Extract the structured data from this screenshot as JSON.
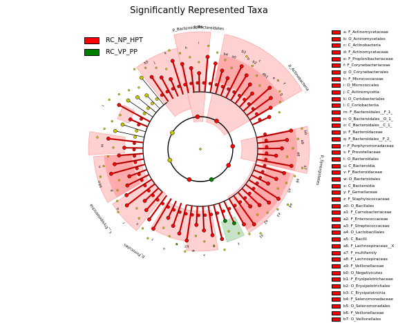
{
  "title": "Significantly Represented Taxa",
  "colors": {
    "np_hpt": "#ff0000",
    "vp_pp": "#008000",
    "shade_np_hpt": "#ff9999",
    "shade_vp_pp": "#99cc99",
    "node_neutral": "#c8c800",
    "edge": "#000000"
  },
  "legend": [
    {
      "label": "RC_NP_HPT",
      "color": "#ff0000"
    },
    {
      "label": "RC_VP_PP",
      "color": "#008000"
    }
  ],
  "ring_labels": [
    {
      "text": "p_Bacteroidetes"
    },
    {
      "text": "c_Bacteroidetes"
    },
    {
      "text": "p_Actinobacteria"
    },
    {
      "text": "p_Synergistetes"
    },
    {
      "text": "p_Firmicutes"
    },
    {
      "text": "c__Erysipelotrichia"
    }
  ],
  "arc_labels": [
    "a0",
    "b",
    "c",
    "d",
    "e",
    "f",
    "g",
    "h",
    "i",
    "j",
    "k",
    "l",
    "m",
    "n",
    "o",
    "p",
    "q",
    "r",
    "s",
    "t",
    "u",
    "v",
    "w",
    "x",
    "y",
    "z",
    "a1",
    "a2",
    "a3",
    "a4",
    "a5",
    "a6",
    "a7",
    "a8",
    "a9",
    "b0",
    "b1",
    "b2",
    "b3",
    "b4",
    "b5",
    "b6",
    "b7"
  ],
  "clade_key": [
    {
      "label": "a: F_Actinomycetaceae"
    },
    {
      "label": "b: O_Actinomycetales"
    },
    {
      "label": "c: C_Actinobacteria"
    },
    {
      "label": "d: F_Actinomycetaceae"
    },
    {
      "label": "e: F_Propionibacteriaceae"
    },
    {
      "label": "f: F_Corynebacteriaceae"
    },
    {
      "label": "g: O_Corynebacteriales"
    },
    {
      "label": "h: F_Micrococcaceae"
    },
    {
      "label": "i: O_Micrococcales"
    },
    {
      "label": "j: C_Actinomycetia"
    },
    {
      "label": "k: O_Coriobacteriales"
    },
    {
      "label": "l: C_Coriobacteriia"
    },
    {
      "label": "m: F_Bacteroidales__F_1_"
    },
    {
      "label": "n: O_Bacteroidales__O_1_"
    },
    {
      "label": "o: C_Bacteroidales__C_1_"
    },
    {
      "label": "p: F_Bacteroidaceae"
    },
    {
      "label": "q: F_Bacteroidales__F_2_"
    },
    {
      "label": "r: F_Porphyromonadaceae"
    },
    {
      "label": "s: F_Prevotellaceae"
    },
    {
      "label": "t: O_Bacteroidales"
    },
    {
      "label": "u: C_Bacteroidia"
    },
    {
      "label": "v: F_Bacteroidaceae"
    },
    {
      "label": "w: O_Bacteroidales"
    },
    {
      "label": "x: C_Bacteroidia"
    },
    {
      "label": "y: F_Gemellaceae"
    },
    {
      "label": "z: F_Staphylococcaceae"
    },
    {
      "label": "a0: O_Bacillales"
    },
    {
      "label": "a1: F_Carnobacteriaceae"
    },
    {
      "label": "a2: F_Enterococcaceae"
    },
    {
      "label": "a3: F_Streptococcaceae"
    },
    {
      "label": "a4: O_Lactobacillales"
    },
    {
      "label": "a5: C_Bacilli"
    },
    {
      "label": "a6: F_Lachnospiraceae__X"
    },
    {
      "label": "a7: F_multifamily"
    },
    {
      "label": "a8: F_Lachnospiraceae"
    },
    {
      "label": "a9: F_Veillonellaceae"
    },
    {
      "label": "b0: O_Negativicutes"
    },
    {
      "label": "b1: F_Erysipelotrichaceae"
    },
    {
      "label": "b2: O_Erysipelotrichales"
    },
    {
      "label": "b3: C_Erysipelotrichia"
    },
    {
      "label": "b4: F_Selenomonadaceae"
    },
    {
      "label": "b5: O_Selenomonadales"
    },
    {
      "label": "b6: F_Veillonellaceae"
    },
    {
      "label": "b7: O_Veillonellales"
    }
  ]
}
